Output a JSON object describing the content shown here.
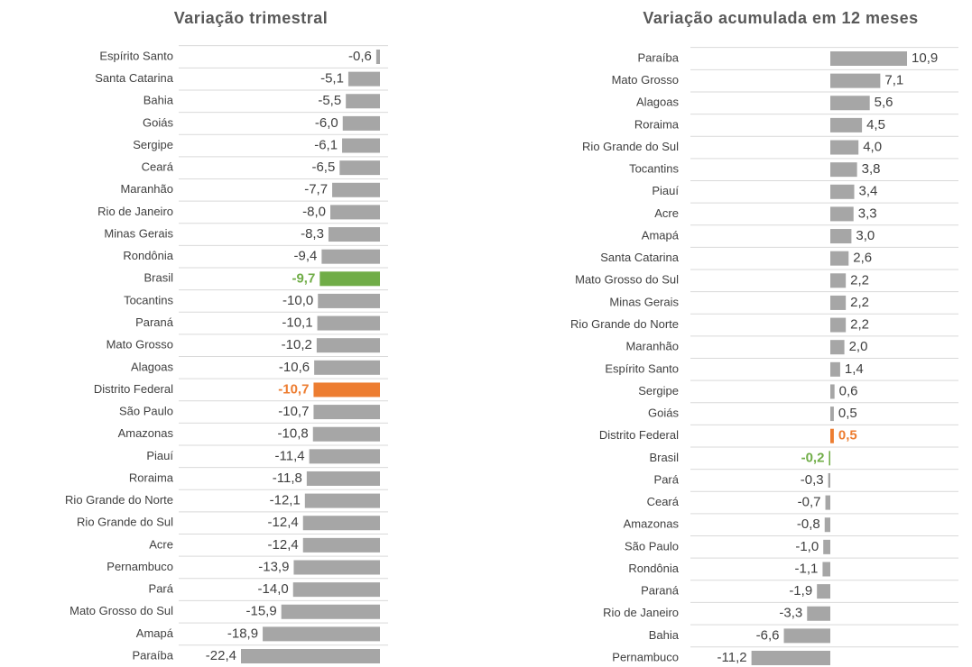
{
  "chart_data": [
    {
      "type": "hbar",
      "title": "Variação trimestral",
      "color": "#a6a6a6",
      "categories": [
        "Espírito Santo",
        "Santa Catarina",
        "Bahia",
        "Goiás",
        "Sergipe",
        "Ceará",
        "Maranhão",
        "Rio de Janeiro",
        "Minas Gerais",
        "Rondônia",
        "Brasil",
        "Tocantins",
        "Paraná",
        "Mato Grosso",
        "Alagoas",
        "Distrito Federal",
        "São Paulo",
        "Amazonas",
        "Piauí",
        "Roraima",
        "Rio Grande do Norte",
        "Rio Grande do Sul",
        "Acre",
        "Pernambuco",
        "Pará",
        "Mato Grosso do Sul",
        "Amapá",
        "Paraíba"
      ],
      "values": [
        -0.6,
        -5.1,
        -5.5,
        -6.0,
        -6.1,
        -6.5,
        -7.7,
        -8.0,
        -8.3,
        -9.4,
        -9.7,
        -10.0,
        -10.1,
        -10.2,
        -10.6,
        -10.7,
        -10.7,
        -10.8,
        -11.4,
        -11.8,
        -12.1,
        -12.4,
        -12.4,
        -13.9,
        -14.0,
        -15.9,
        -18.9,
        -22.4
      ],
      "value_labels": [
        "-0,6",
        "-5,1",
        "-5,5",
        "-6,0",
        "-6,1",
        "-6,5",
        "-7,7",
        "-8,0",
        "-8,3",
        "-9,4",
        "-9,7",
        "-10,0",
        "-10,1",
        "-10,2",
        "-10,6",
        "-10,7",
        "-10,7",
        "-10,8",
        "-11,4",
        "-11,8",
        "-12,1",
        "-12,4",
        "-12,4",
        "-13,9",
        "-14,0",
        "-15,9",
        "-18,9",
        "-22,4"
      ],
      "colors": [
        "#a6a6a6",
        "#a6a6a6",
        "#a6a6a6",
        "#a6a6a6",
        "#a6a6a6",
        "#a6a6a6",
        "#a6a6a6",
        "#a6a6a6",
        "#a6a6a6",
        "#a6a6a6",
        "#70ad47",
        "#a6a6a6",
        "#a6a6a6",
        "#a6a6a6",
        "#a6a6a6",
        "#ed7d31",
        "#a6a6a6",
        "#a6a6a6",
        "#a6a6a6",
        "#a6a6a6",
        "#a6a6a6",
        "#a6a6a6",
        "#a6a6a6",
        "#a6a6a6",
        "#a6a6a6",
        "#a6a6a6",
        "#a6a6a6",
        "#a6a6a6"
      ]
    },
    {
      "type": "hbar",
      "title": "Variação acumulada em 12 meses",
      "color": "#a6a6a6",
      "categories": [
        "Paraíba",
        "Mato Grosso",
        "Alagoas",
        "Roraima",
        "Rio Grande do Sul",
        "Tocantins",
        "Piauí",
        "Acre",
        "Amapá",
        "Santa Catarina",
        "Mato Grosso do Sul",
        "Minas Gerais",
        "Rio Grande do Norte",
        "Maranhão",
        "Espírito Santo",
        "Sergipe",
        "Goiás",
        "Distrito Federal",
        "Brasil",
        "Pará",
        "Ceará",
        "Amazonas",
        "São Paulo",
        "Rondônia",
        "Paraná",
        "Rio de Janeiro",
        "Bahia",
        "Pernambuco"
      ],
      "values": [
        10.9,
        7.1,
        5.6,
        4.5,
        4.0,
        3.8,
        3.4,
        3.3,
        3.0,
        2.6,
        2.2,
        2.2,
        2.2,
        2.0,
        1.4,
        0.6,
        0.5,
        0.5,
        -0.2,
        -0.3,
        -0.7,
        -0.8,
        -1.0,
        -1.1,
        -1.9,
        -3.3,
        -6.6,
        -11.2
      ],
      "value_labels": [
        "10,9",
        "7,1",
        "5,6",
        "4,5",
        "4,0",
        "3,8",
        "3,4",
        "3,3",
        "3,0",
        "2,6",
        "2,2",
        "2,2",
        "2,2",
        "2,0",
        "1,4",
        "0,6",
        "0,5",
        "0,5",
        "-0,2",
        "-0,3",
        "-0,7",
        "-0,8",
        "-1,0",
        "-1,1",
        "-1,9",
        "-3,3",
        "-6,6",
        "-11,2"
      ],
      "colors": [
        "#a6a6a6",
        "#a6a6a6",
        "#a6a6a6",
        "#a6a6a6",
        "#a6a6a6",
        "#a6a6a6",
        "#a6a6a6",
        "#a6a6a6",
        "#a6a6a6",
        "#a6a6a6",
        "#a6a6a6",
        "#a6a6a6",
        "#a6a6a6",
        "#a6a6a6",
        "#a6a6a6",
        "#a6a6a6",
        "#a6a6a6",
        "#ed7d31",
        "#70ad47",
        "#a6a6a6",
        "#a6a6a6",
        "#a6a6a6",
        "#a6a6a6",
        "#a6a6a6",
        "#a6a6a6",
        "#a6a6a6",
        "#a6a6a6",
        "#a6a6a6"
      ]
    }
  ]
}
